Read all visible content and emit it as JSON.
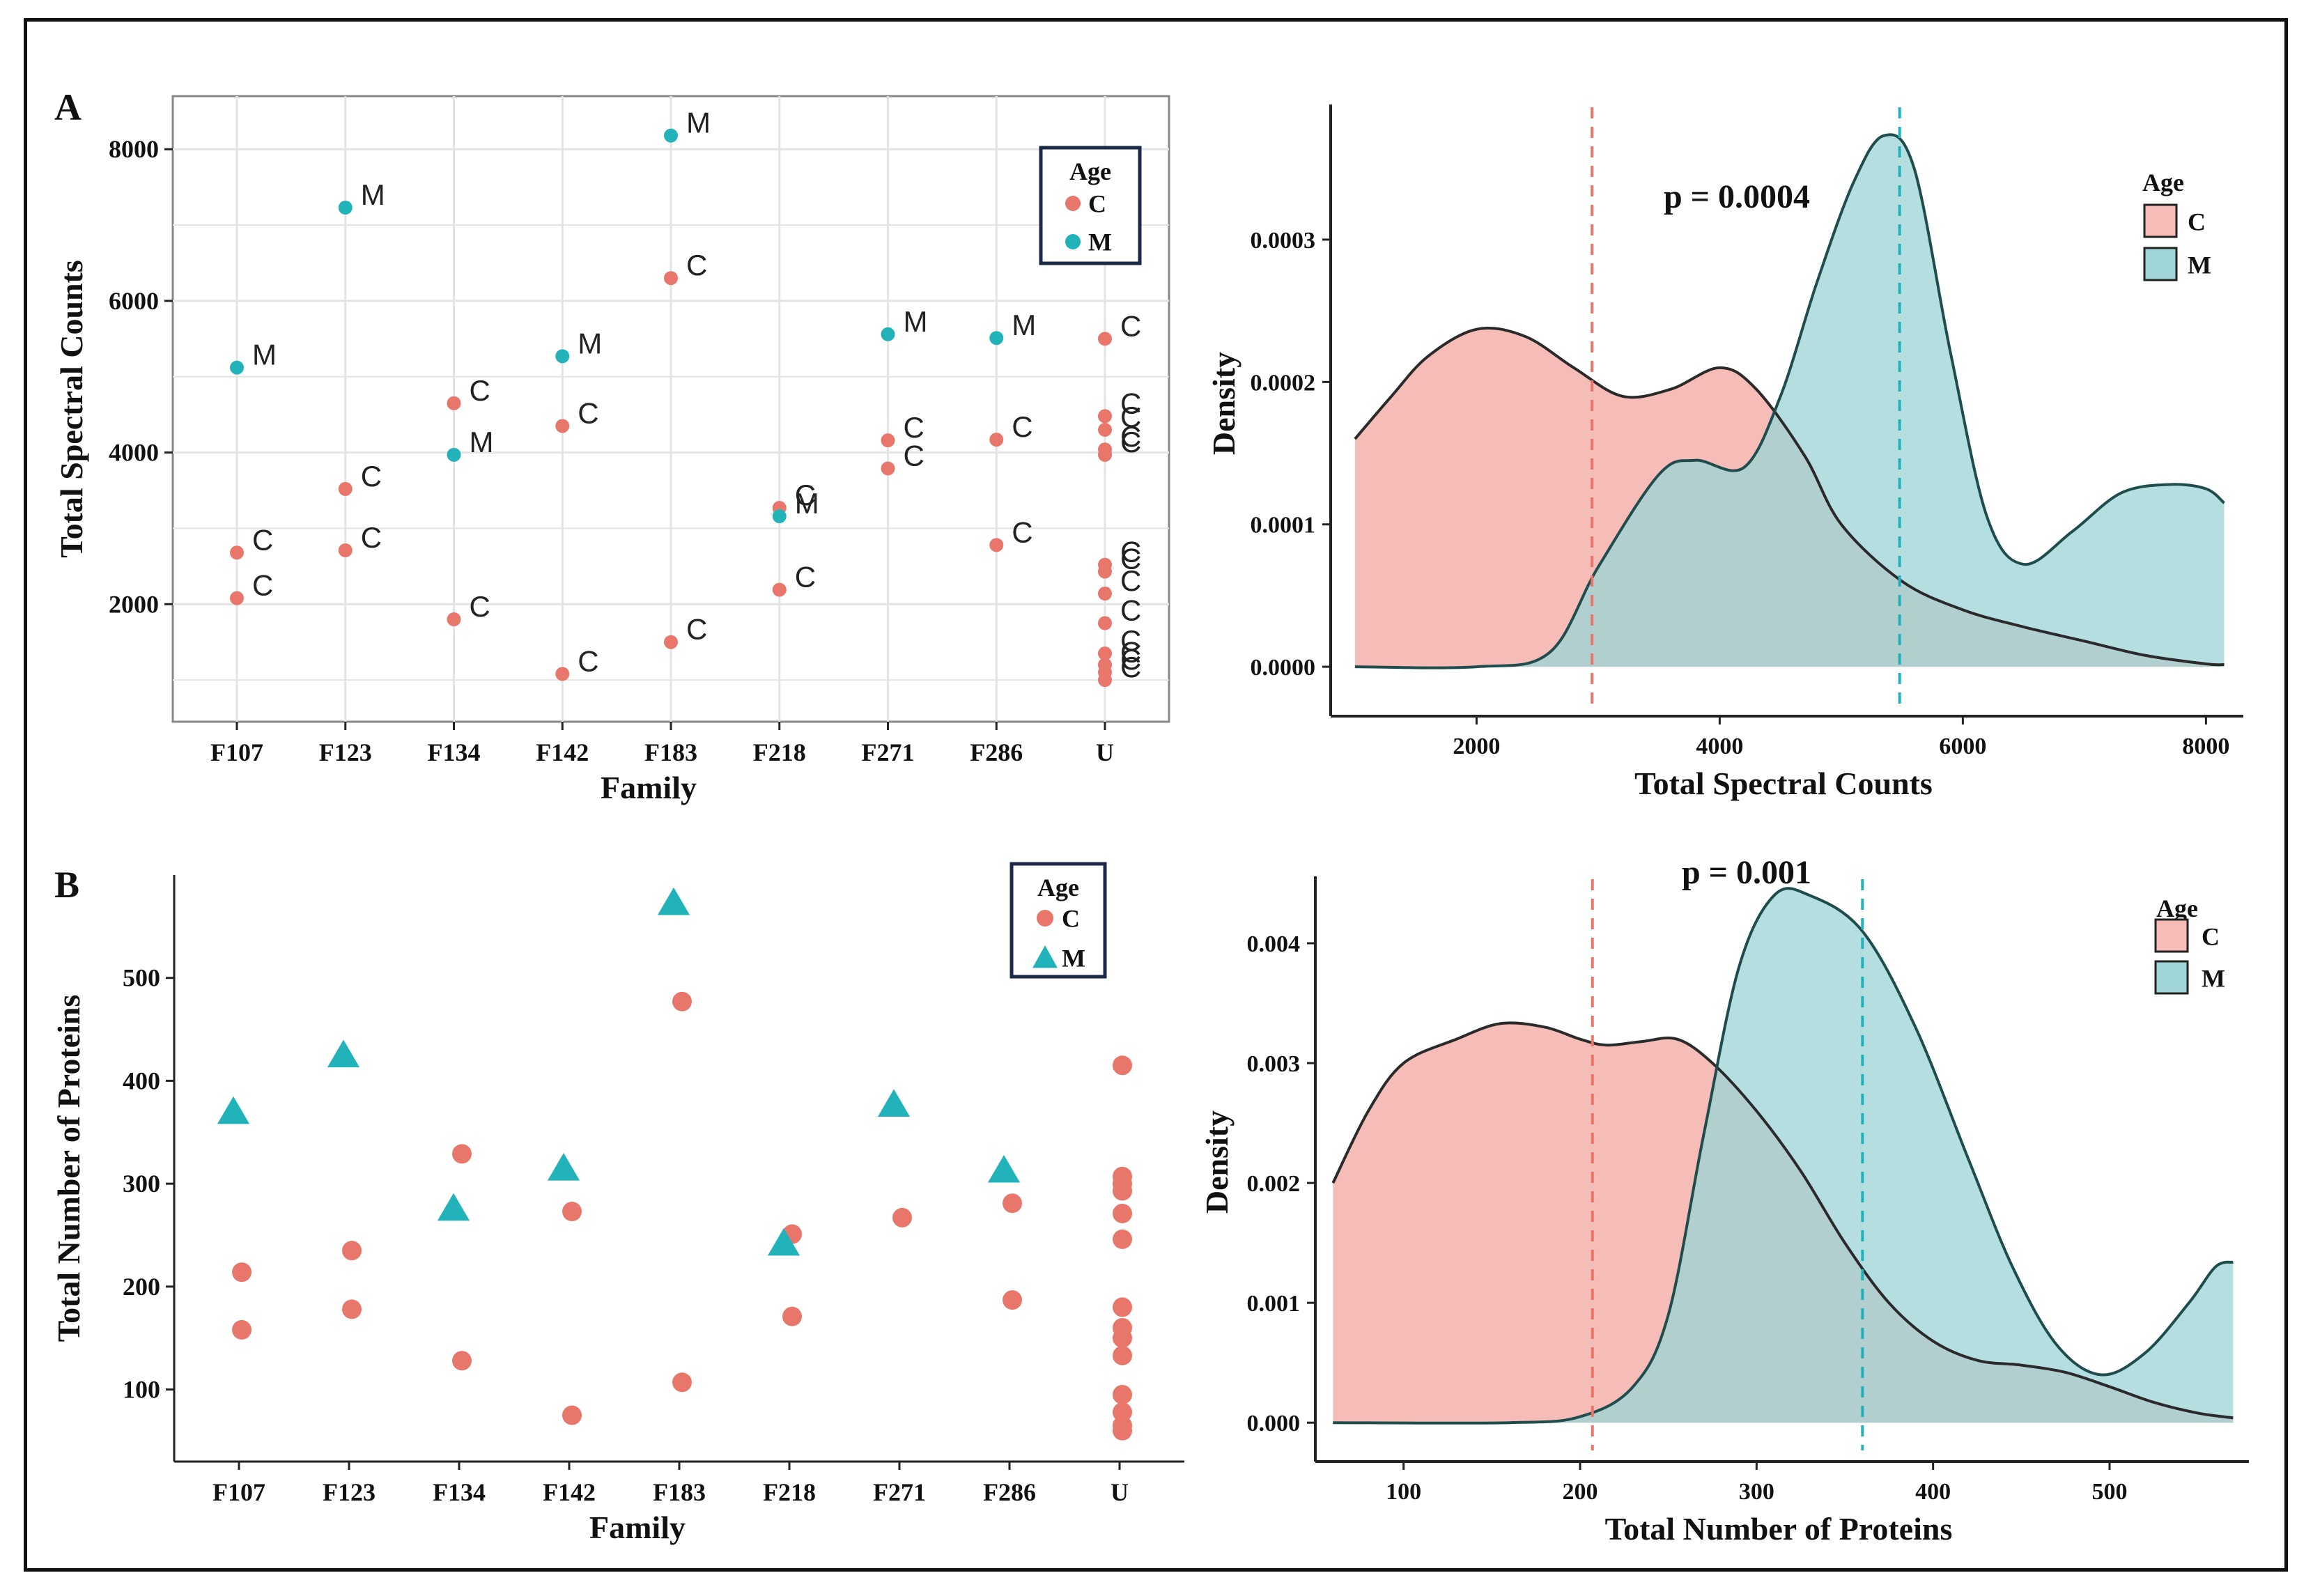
{
  "panels": {
    "A": "A",
    "B": "B"
  },
  "colors": {
    "C": "#e8766b",
    "M": "#22b3ba",
    "C_fill": "#f6bcb8",
    "M_fill": "#9fd5d6",
    "overlap": "#a3bcb8",
    "grid": "#e4e4e4",
    "axis": "#222222",
    "legend_border": "#1c2a4a"
  },
  "chart_data": [
    {
      "id": "A-scatter",
      "type": "scatter",
      "xlabel": "Family",
      "ylabel": "Total Spectral Counts",
      "categories": [
        "F107",
        "F123",
        "F134",
        "F142",
        "F183",
        "F218",
        "F271",
        "F286",
        "U"
      ],
      "yticks": [
        2000,
        4000,
        6000,
        8000
      ],
      "ylim": [
        450,
        8700
      ],
      "grid": true,
      "point_labels": true,
      "legend": {
        "title": "Age",
        "entries": [
          "C",
          "M"
        ],
        "placement": "top-right"
      },
      "series": [
        {
          "name": "C",
          "marker": "circle",
          "points": [
            [
              "F107",
              2680
            ],
            [
              "F107",
              2080
            ],
            [
              "F123",
              3520
            ],
            [
              "F123",
              2710
            ],
            [
              "F134",
              4650
            ],
            [
              "F134",
              1800
            ],
            [
              "F142",
              4350
            ],
            [
              "F142",
              1080
            ],
            [
              "F183",
              6300
            ],
            [
              "F183",
              1500
            ],
            [
              "F218",
              3270
            ],
            [
              "F218",
              2190
            ],
            [
              "F271",
              4160
            ],
            [
              "F271",
              3790
            ],
            [
              "F286",
              4170
            ],
            [
              "F286",
              2780
            ],
            [
              "U",
              5500
            ],
            [
              "U",
              4480
            ],
            [
              "U",
              4300
            ],
            [
              "U",
              4040
            ],
            [
              "U",
              3970
            ],
            [
              "U",
              2520
            ],
            [
              "U",
              2430
            ],
            [
              "U",
              2140
            ],
            [
              "U",
              1750
            ],
            [
              "U",
              1350
            ],
            [
              "U",
              1200
            ],
            [
              "U",
              1100
            ],
            [
              "U",
              1000
            ]
          ]
        },
        {
          "name": "M",
          "marker": "circle",
          "points": [
            [
              "F107",
              5120
            ],
            [
              "F123",
              7230
            ],
            [
              "F134",
              3970
            ],
            [
              "F142",
              5270
            ],
            [
              "F183",
              8180
            ],
            [
              "F218",
              3160
            ],
            [
              "F271",
              5560
            ],
            [
              "F286",
              5510
            ]
          ]
        }
      ]
    },
    {
      "id": "A-density",
      "type": "area",
      "title": "p = 0.0004",
      "xlabel": "Total Spectral Counts",
      "ylabel": "Density",
      "xticks": [
        2000,
        4000,
        6000,
        8000
      ],
      "yticks": [
        "0.0000",
        "0.0001",
        "0.0002",
        "0.0003"
      ],
      "xlim": [
        800,
        8250
      ],
      "ylim": [
        -2e-05,
        0.00039
      ],
      "legend": {
        "title": "Age",
        "entries": [
          "C",
          "M"
        ],
        "placement": "top-right"
      },
      "mean_lines": {
        "C": 2950,
        "M": 5480
      },
      "series": [
        {
          "name": "C",
          "points": [
            [
              1000,
              0.00016
            ],
            [
              1300,
              0.00019
            ],
            [
              1600,
              0.000218
            ],
            [
              2000,
              0.000237
            ],
            [
              2400,
              0.000232
            ],
            [
              2800,
              0.00021
            ],
            [
              3200,
              0.00019
            ],
            [
              3600,
              0.000195
            ],
            [
              4000,
              0.00021
            ],
            [
              4300,
              0.000195
            ],
            [
              4700,
              0.000148
            ],
            [
              5000,
              0.0001
            ],
            [
              5500,
              6e-05
            ],
            [
              6000,
              4e-05
            ],
            [
              6500,
              2.8e-05
            ],
            [
              7000,
              1.8e-05
            ],
            [
              7500,
              8e-06
            ],
            [
              8000,
              2e-06
            ],
            [
              8150,
              1.5e-06
            ]
          ]
        },
        {
          "name": "M",
          "points": [
            [
              1000,
              0.0
            ],
            [
              2000,
              0.0
            ],
            [
              2600,
              1e-05
            ],
            [
              3000,
              7e-05
            ],
            [
              3500,
              0.000135
            ],
            [
              3800,
              0.000145
            ],
            [
              4200,
              0.00014
            ],
            [
              4500,
              0.00019
            ],
            [
              4800,
              0.00027
            ],
            [
              5100,
              0.00034
            ],
            [
              5350,
              0.000373
            ],
            [
              5600,
              0.00035
            ],
            [
              5900,
              0.00022
            ],
            [
              6200,
              0.000105
            ],
            [
              6500,
              7.2e-05
            ],
            [
              6900,
              9.5e-05
            ],
            [
              7300,
              0.000122
            ],
            [
              7700,
              0.000128
            ],
            [
              8000,
              0.000125
            ],
            [
              8150,
              0.000115
            ]
          ]
        }
      ]
    },
    {
      "id": "B-scatter",
      "type": "scatter",
      "xlabel": "Family",
      "ylabel": "Total Number of Proteins",
      "categories": [
        "F107",
        "F123",
        "F134",
        "F142",
        "F183",
        "F218",
        "F271",
        "F286",
        "U"
      ],
      "yticks": [
        100,
        200,
        300,
        400,
        500
      ],
      "ylim": [
        30,
        600
      ],
      "grid": false,
      "legend": {
        "title": "Age",
        "entries": [
          "C",
          "M"
        ],
        "placement": "top-right"
      },
      "series": [
        {
          "name": "C",
          "marker": "circle",
          "points": [
            [
              "F107",
              214
            ],
            [
              "F107",
              158
            ],
            [
              "F123",
              235
            ],
            [
              "F123",
              178
            ],
            [
              "F134",
              329
            ],
            [
              "F134",
              128
            ],
            [
              "F142",
              273
            ],
            [
              "F142",
              75
            ],
            [
              "F183",
              477
            ],
            [
              "F183",
              107
            ],
            [
              "F218",
              251
            ],
            [
              "F218",
              171
            ],
            [
              "F271",
              267
            ],
            [
              "F286",
              281
            ],
            [
              "F286",
              187
            ],
            [
              "U",
              415
            ],
            [
              "U",
              307
            ],
            [
              "U",
              300
            ],
            [
              "U",
              293
            ],
            [
              "U",
              271
            ],
            [
              "U",
              246
            ],
            [
              "U",
              180
            ],
            [
              "U",
              160
            ],
            [
              "U",
              150
            ],
            [
              "U",
              133
            ],
            [
              "U",
              95
            ],
            [
              "U",
              78
            ],
            [
              "U",
              65
            ],
            [
              "U",
              60
            ]
          ]
        },
        {
          "name": "M",
          "marker": "triangle",
          "points": [
            [
              "F107",
              370
            ],
            [
              "F123",
              425
            ],
            [
              "F134",
              276
            ],
            [
              "F142",
              315
            ],
            [
              "F183",
              573
            ],
            [
              "F218",
              242
            ],
            [
              "F271",
              377
            ],
            [
              "F286",
              313
            ]
          ]
        }
      ]
    },
    {
      "id": "B-density",
      "type": "area",
      "title": "p = 0.001",
      "xlabel": "Total Number of Proteins",
      "ylabel": "Density",
      "xticks": [
        100,
        200,
        300,
        400,
        500
      ],
      "yticks": [
        "0.000",
        "0.001",
        "0.002",
        "0.003",
        "0.004"
      ],
      "xlim": [
        50,
        575
      ],
      "ylim": [
        -0.00015,
        0.0045
      ],
      "legend": {
        "title": "Age",
        "entries": [
          "C",
          "M"
        ],
        "placement": "top-right"
      },
      "mean_lines": {
        "C": 207,
        "M": 360
      },
      "series": [
        {
          "name": "C",
          "points": [
            [
              60,
              0.002
            ],
            [
              80,
              0.0026
            ],
            [
              100,
              0.003
            ],
            [
              130,
              0.0032
            ],
            [
              155,
              0.00333
            ],
            [
              180,
              0.0033
            ],
            [
              200,
              0.0032
            ],
            [
              215,
              0.00315
            ],
            [
              235,
              0.00318
            ],
            [
              255,
              0.0032
            ],
            [
              275,
              0.003
            ],
            [
              300,
              0.0026
            ],
            [
              325,
              0.0021
            ],
            [
              350,
              0.0015
            ],
            [
              375,
              0.001
            ],
            [
              400,
              0.00068
            ],
            [
              425,
              0.00052
            ],
            [
              450,
              0.00048
            ],
            [
              475,
              0.00042
            ],
            [
              500,
              0.0003
            ],
            [
              525,
              0.00017
            ],
            [
              550,
              8e-05
            ],
            [
              570,
              4e-05
            ]
          ]
        },
        {
          "name": "M",
          "points": [
            [
              60,
              0.0
            ],
            [
              160,
              0.0
            ],
            [
              200,
              5e-05
            ],
            [
              230,
              0.0003
            ],
            [
              250,
              0.0009
            ],
            [
              270,
              0.0024
            ],
            [
              290,
              0.0038
            ],
            [
              310,
              0.0044
            ],
            [
              330,
              0.0044
            ],
            [
              360,
              0.0041
            ],
            [
              390,
              0.0033
            ],
            [
              420,
              0.0022
            ],
            [
              445,
              0.0013
            ],
            [
              470,
              0.00065
            ],
            [
              495,
              0.0004
            ],
            [
              520,
              0.00058
            ],
            [
              545,
              0.001
            ],
            [
              560,
              0.0013
            ],
            [
              570,
              0.00134
            ]
          ]
        }
      ]
    }
  ]
}
